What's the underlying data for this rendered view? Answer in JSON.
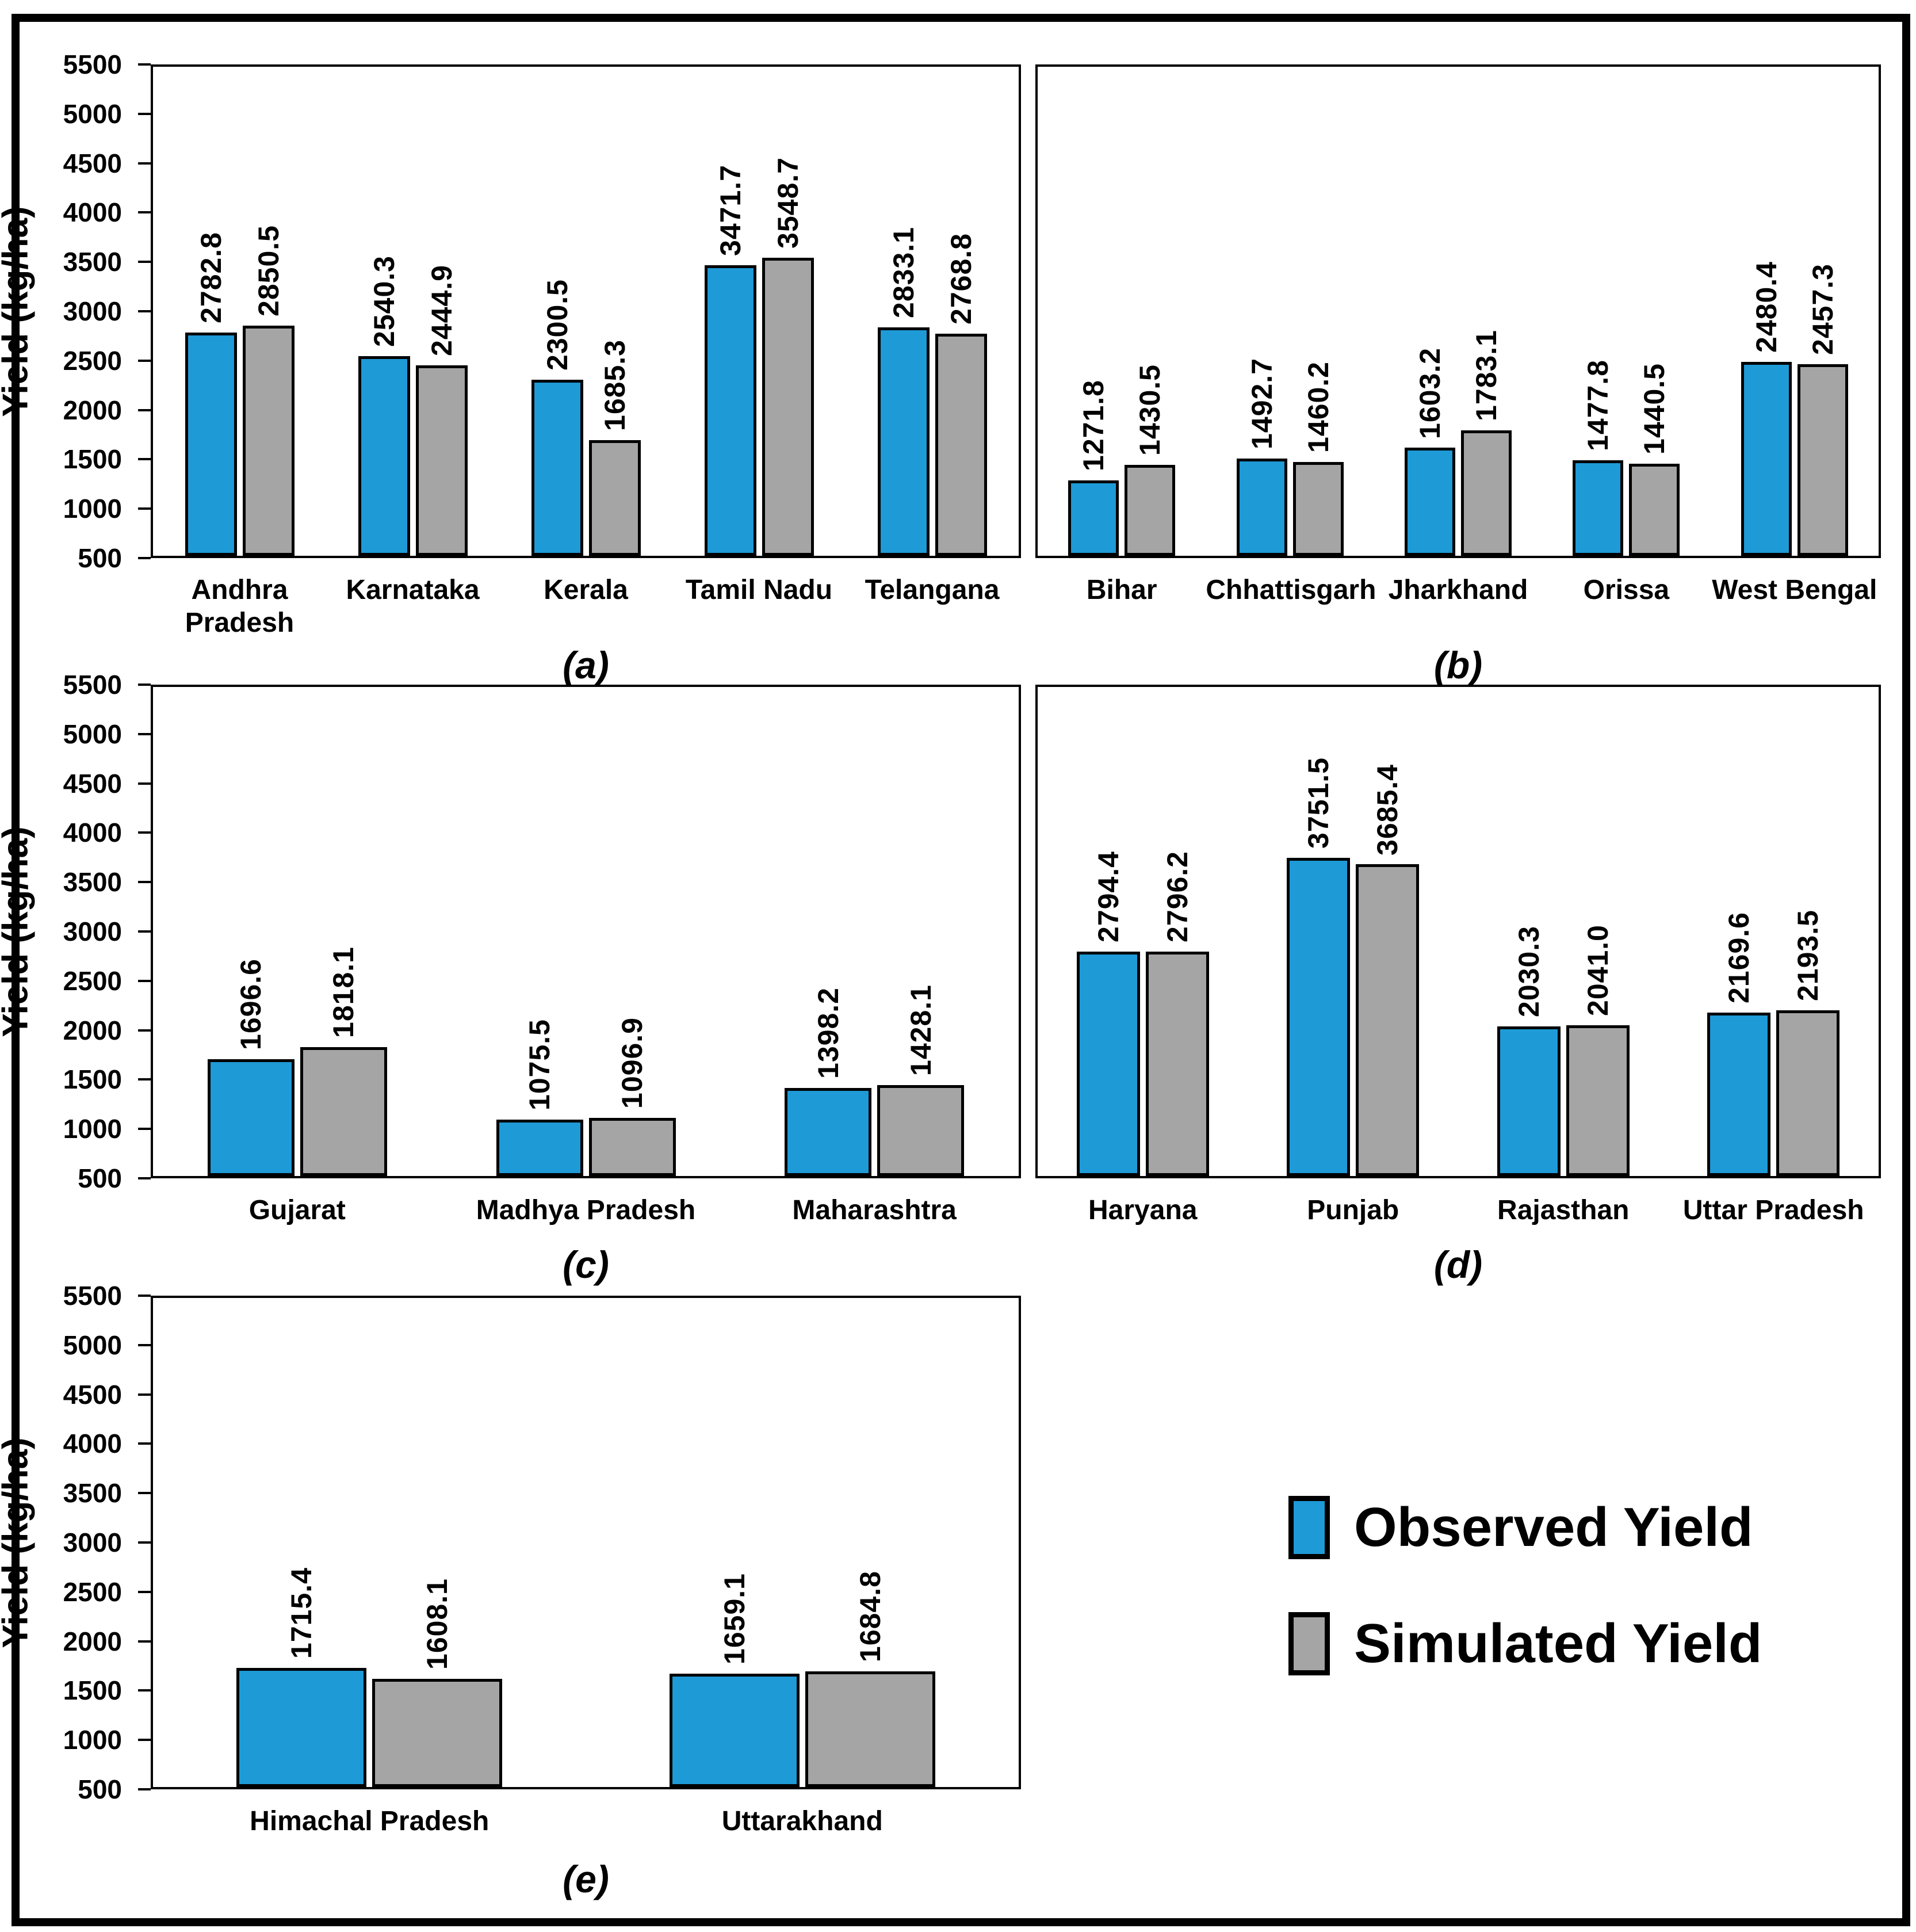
{
  "figure": {
    "y_axis_title": "Yield (kg/ha)",
    "colors": {
      "observed": "#1E9AD7",
      "simulated": "#A5A5A5",
      "bar_border": "#000000"
    }
  },
  "legend": {
    "items": [
      {
        "label": "Observed Yield",
        "color": "#1E9AD7"
      },
      {
        "label": "Simulated Yield",
        "color": "#A5A5A5"
      }
    ]
  },
  "chart_data": [
    {
      "type": "bar",
      "panel_label": "(a)",
      "categories": [
        "Andhra Pradesh",
        "Karnataka",
        "Kerala",
        "Tamil Nadu",
        "Telangana"
      ],
      "series": [
        {
          "name": "Observed Yield",
          "values": [
            2782.8,
            2540.3,
            2300.5,
            3471.7,
            2833.1
          ]
        },
        {
          "name": "Simulated Yield",
          "values": [
            2850.5,
            2444.9,
            1685.3,
            3548.7,
            2768.8
          ]
        }
      ],
      "xlabel": "",
      "ylabel": "Yield (kg/ha)",
      "ylim": [
        500,
        5500
      ],
      "ytick_step": 500,
      "show_y_axis": true,
      "grid": false,
      "legend_position": "none"
    },
    {
      "type": "bar",
      "panel_label": "(b)",
      "categories": [
        "Bihar",
        "Chhattisgarh",
        "Jharkhand",
        "Orissa",
        "West Bengal"
      ],
      "series": [
        {
          "name": "Observed Yield",
          "values": [
            1271.8,
            1492.7,
            1603.2,
            1477.8,
            2480.4
          ]
        },
        {
          "name": "Simulated Yield",
          "values": [
            1430.5,
            1460.2,
            1783.1,
            1440.5,
            2457.3
          ]
        }
      ],
      "xlabel": "",
      "ylabel": "",
      "ylim": [
        500,
        5500
      ],
      "ytick_step": 500,
      "show_y_axis": false,
      "grid": false,
      "legend_position": "none"
    },
    {
      "type": "bar",
      "panel_label": "(c)",
      "categories": [
        "Gujarat",
        "Madhya Pradesh",
        "Maharashtra"
      ],
      "series": [
        {
          "name": "Observed Yield",
          "values": [
            1696.6,
            1075.5,
            1398.2
          ]
        },
        {
          "name": "Simulated Yield",
          "values": [
            1818.1,
            1096.9,
            1428.1
          ]
        }
      ],
      "xlabel": "",
      "ylabel": "Yield (kg/ha)",
      "ylim": [
        500,
        5500
      ],
      "ytick_step": 500,
      "show_y_axis": true,
      "grid": false,
      "legend_position": "none"
    },
    {
      "type": "bar",
      "panel_label": "(d)",
      "categories": [
        "Haryana",
        "Punjab",
        "Rajasthan",
        "Uttar Pradesh"
      ],
      "series": [
        {
          "name": "Observed Yield",
          "values": [
            2794.4,
            3751.5,
            2030.3,
            2169.6
          ]
        },
        {
          "name": "Simulated Yield",
          "values": [
            2796.2,
            3685.4,
            2041.0,
            2193.5
          ]
        }
      ],
      "xlabel": "",
      "ylabel": "",
      "ylim": [
        500,
        5500
      ],
      "ytick_step": 500,
      "show_y_axis": false,
      "grid": false,
      "legend_position": "none"
    },
    {
      "type": "bar",
      "panel_label": "(e)",
      "categories": [
        "Himachal Pradesh",
        "Uttarakhand"
      ],
      "series": [
        {
          "name": "Observed Yield",
          "values": [
            1715.4,
            1659.1
          ]
        },
        {
          "name": "Simulated Yield",
          "values": [
            1608.1,
            1684.8
          ]
        }
      ],
      "xlabel": "",
      "ylabel": "Yield (kg/ha)",
      "ylim": [
        500,
        5500
      ],
      "ytick_step": 500,
      "show_y_axis": true,
      "grid": false,
      "legend_position": "none"
    }
  ]
}
